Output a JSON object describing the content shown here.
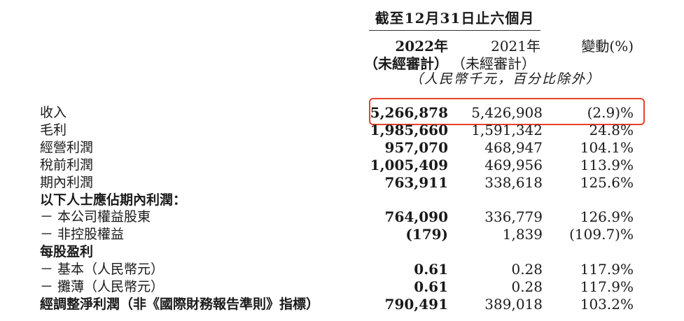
{
  "header": {
    "period": "截至12月31日止六個月",
    "col_2022": "2022年",
    "col_2021": "2021年",
    "col_change": "變動(%)",
    "audit_2022": "（未經審計）",
    "audit_2021": "（未經審計）",
    "unit": "（人民幣千元，百分比除外）"
  },
  "highlight_color": "#e8412a",
  "rows": [
    {
      "label": "收入",
      "bold": false,
      "v2022": "5,266,878",
      "v2021": "5,426,908",
      "change": "(2.9)%",
      "highlighted": true
    },
    {
      "label": "毛利",
      "bold": false,
      "v2022": "1,985,660",
      "v2021": "1,591,342",
      "change": "24.8%"
    },
    {
      "label": "經營利潤",
      "bold": false,
      "v2022": "957,070",
      "v2021": "468,947",
      "change": "104.1%"
    },
    {
      "label": "稅前利潤",
      "bold": false,
      "v2022": "1,005,409",
      "v2021": "469,956",
      "change": "113.9%"
    },
    {
      "label": "期內利潤",
      "bold": false,
      "v2022": "763,911",
      "v2021": "338,618",
      "change": "125.6%"
    },
    {
      "label": "以下人士應佔期內利潤：",
      "bold": true,
      "v2022": "",
      "v2021": "",
      "change": ""
    },
    {
      "label": "－ 本公司權益股東",
      "bold": false,
      "v2022": "764,090",
      "v2021": "336,779",
      "change": "126.9%"
    },
    {
      "label": "－ 非控股權益",
      "bold": false,
      "v2022": "(179)",
      "v2021": "1,839",
      "change": "(109.7)%"
    },
    {
      "label": "每股盈利",
      "bold": true,
      "v2022": "",
      "v2021": "",
      "change": ""
    },
    {
      "label": "－ 基本（人民幣元）",
      "bold": false,
      "v2022": "0.61",
      "v2021": "0.28",
      "change": "117.9%"
    },
    {
      "label": "－ 攤薄（人民幣元）",
      "bold": false,
      "v2022": "0.61",
      "v2021": "0.28",
      "change": "117.9%"
    },
    {
      "label": "經調整淨利潤（非《國際財務報告準則》指標）",
      "bold": true,
      "v2022": "790,491",
      "v2021": "389,018",
      "change": "103.2%"
    }
  ]
}
